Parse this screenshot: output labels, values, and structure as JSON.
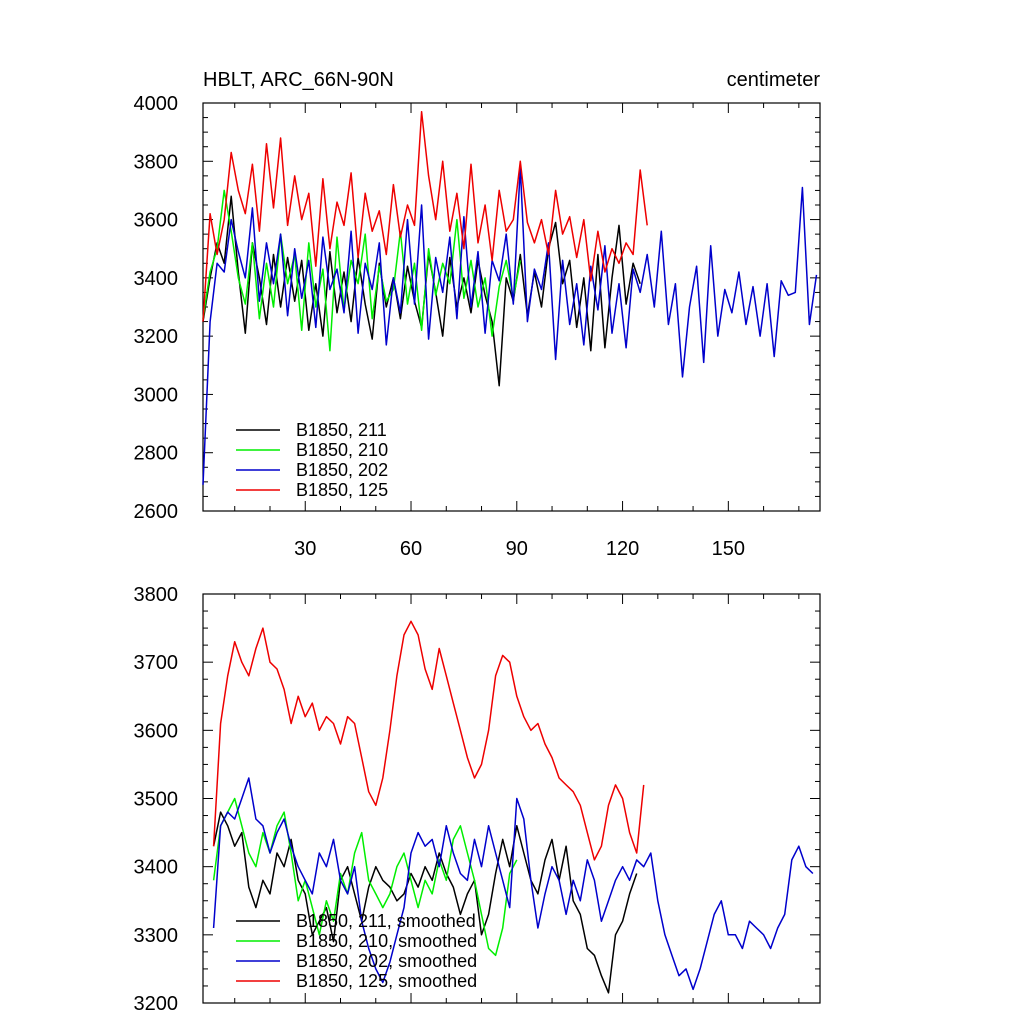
{
  "chart_data": [
    {
      "type": "line",
      "title": "HBLT, ARC_66N-90N",
      "units": "centimeter",
      "xlabel": "",
      "ylabel": "",
      "xlim": [
        1,
        176
      ],
      "ylim": [
        2600,
        4000
      ],
      "xticks": [
        30,
        60,
        90,
        120,
        150
      ],
      "yticks": [
        2600,
        2800,
        3000,
        3200,
        3400,
        3600,
        3800,
        4000
      ],
      "grid": false,
      "legend_position": "bottom-left",
      "series": [
        {
          "name": "B1850, 211",
          "color": "#000000",
          "x": [
            1,
            3,
            5,
            7,
            9,
            11,
            13,
            15,
            17,
            19,
            21,
            23,
            25,
            27,
            29,
            31,
            33,
            35,
            37,
            39,
            41,
            43,
            45,
            47,
            49,
            51,
            53,
            55,
            57,
            59,
            61,
            63,
            65,
            67,
            69,
            71,
            73,
            75,
            77,
            79,
            81,
            83,
            85,
            87,
            89,
            91,
            93,
            95,
            97,
            99,
            101,
            103,
            105,
            107,
            109,
            111,
            113,
            115,
            117,
            119,
            121,
            123,
            125
          ],
          "y": [
            3250,
            3400,
            3520,
            3450,
            3680,
            3420,
            3210,
            3520,
            3400,
            3240,
            3480,
            3300,
            3470,
            3320,
            3460,
            3220,
            3380,
            3200,
            3490,
            3280,
            3420,
            3250,
            3470,
            3310,
            3190,
            3450,
            3300,
            3400,
            3260,
            3440,
            3320,
            3230,
            3480,
            3350,
            3200,
            3470,
            3300,
            3400,
            3280,
            3460,
            3340,
            3250,
            3030,
            3400,
            3320,
            3480,
            3270,
            3420,
            3300,
            3500,
            3590,
            3380,
            3460,
            3230,
            3400,
            3150,
            3480,
            3160,
            3400,
            3580,
            3310,
            3450,
            3380
          ]
        },
        {
          "name": "B1850, 210",
          "color": "#00ee00",
          "x": [
            1,
            3,
            5,
            7,
            9,
            11,
            13,
            15,
            17,
            19,
            21,
            23,
            25,
            27,
            29,
            31,
            33,
            35,
            37,
            39,
            41,
            43,
            45,
            47,
            49,
            51,
            53,
            55,
            57,
            59,
            61,
            63,
            65,
            67,
            69,
            71,
            73,
            75,
            77,
            79,
            81,
            83,
            85,
            87,
            89,
            91
          ],
          "y": [
            3260,
            3420,
            3500,
            3700,
            3560,
            3400,
            3310,
            3520,
            3260,
            3450,
            3300,
            3550,
            3380,
            3480,
            3220,
            3520,
            3300,
            3430,
            3150,
            3540,
            3290,
            3460,
            3380,
            3550,
            3260,
            3440,
            3320,
            3360,
            3560,
            3310,
            3450,
            3220,
            3500,
            3340,
            3450,
            3380,
            3600,
            3330,
            3460,
            3300,
            3400,
            3200,
            3370,
            3460,
            3330,
            3460
          ]
        },
        {
          "name": "B1850, 202",
          "color": "#0000cc",
          "x": [
            1,
            3,
            5,
            7,
            9,
            11,
            13,
            15,
            17,
            19,
            21,
            23,
            25,
            27,
            29,
            31,
            33,
            35,
            37,
            39,
            41,
            43,
            45,
            47,
            49,
            51,
            53,
            55,
            57,
            59,
            61,
            63,
            65,
            67,
            69,
            71,
            73,
            75,
            77,
            79,
            81,
            83,
            85,
            87,
            89,
            91,
            93,
            95,
            97,
            99,
            101,
            103,
            105,
            107,
            109,
            111,
            113,
            115,
            117,
            119,
            121,
            123,
            125,
            127,
            129,
            131,
            133,
            135,
            137,
            139,
            141,
            143,
            145,
            147,
            149,
            151,
            153,
            155,
            157,
            159,
            161,
            163,
            165,
            167,
            169,
            171,
            173,
            175
          ],
          "y": [
            2690,
            3250,
            3450,
            3420,
            3600,
            3490,
            3400,
            3640,
            3320,
            3520,
            3380,
            3550,
            3270,
            3500,
            3330,
            3460,
            3230,
            3540,
            3360,
            3430,
            3280,
            3560,
            3210,
            3450,
            3360,
            3520,
            3170,
            3400,
            3280,
            3600,
            3310,
            3650,
            3190,
            3470,
            3350,
            3540,
            3260,
            3610,
            3300,
            3490,
            3210,
            3460,
            3390,
            3550,
            3310,
            3780,
            3250,
            3430,
            3360,
            3520,
            3120,
            3460,
            3240,
            3380,
            3170,
            3440,
            3290,
            3510,
            3210,
            3380,
            3160,
            3430,
            3350,
            3480,
            3300,
            3560,
            3240,
            3380,
            3060,
            3300,
            3440,
            3110,
            3510,
            3200,
            3360,
            3280,
            3420,
            3240,
            3370,
            3200,
            3380,
            3130,
            3390,
            3340,
            3350,
            3710,
            3240,
            3410
          ]
        },
        {
          "name": "B1850, 125",
          "color": "#ee0000",
          "x": [
            1,
            3,
            5,
            7,
            9,
            11,
            13,
            15,
            17,
            19,
            21,
            23,
            25,
            27,
            29,
            31,
            33,
            35,
            37,
            39,
            41,
            43,
            45,
            47,
            49,
            51,
            53,
            55,
            57,
            59,
            61,
            63,
            65,
            67,
            69,
            71,
            73,
            75,
            77,
            79,
            81,
            83,
            85,
            87,
            89,
            91,
            93,
            95,
            97,
            99,
            101,
            103,
            105,
            107,
            109,
            111,
            113,
            115,
            117,
            119,
            121,
            123,
            125,
            127
          ],
          "y": [
            3250,
            3620,
            3480,
            3600,
            3830,
            3700,
            3620,
            3790,
            3560,
            3860,
            3640,
            3880,
            3580,
            3750,
            3600,
            3690,
            3440,
            3740,
            3500,
            3660,
            3580,
            3760,
            3470,
            3690,
            3560,
            3630,
            3480,
            3720,
            3540,
            3650,
            3580,
            3970,
            3750,
            3600,
            3800,
            3560,
            3690,
            3500,
            3790,
            3520,
            3650,
            3460,
            3700,
            3560,
            3600,
            3800,
            3590,
            3520,
            3600,
            3480,
            3700,
            3550,
            3610,
            3470,
            3600,
            3390,
            3560,
            3420,
            3500,
            3450,
            3520,
            3480,
            3770,
            3580
          ]
        }
      ]
    },
    {
      "type": "line",
      "title": "",
      "xlabel": "",
      "ylabel": "",
      "xlim": [
        1,
        176
      ],
      "ylim": [
        3200,
        3800
      ],
      "xticks": [
        30,
        60,
        90,
        120,
        150
      ],
      "yticks": [
        3200,
        3300,
        3400,
        3500,
        3600,
        3700,
        3800
      ],
      "grid": false,
      "legend_position": "bottom-left",
      "series": [
        {
          "name": "B1850, 211, smoothed",
          "color": "#000000",
          "x": [
            4,
            6,
            8,
            10,
            12,
            14,
            16,
            18,
            20,
            22,
            24,
            26,
            28,
            30,
            32,
            34,
            36,
            38,
            40,
            42,
            44,
            46,
            48,
            50,
            52,
            54,
            56,
            58,
            60,
            62,
            64,
            66,
            68,
            70,
            72,
            74,
            76,
            78,
            80,
            82,
            84,
            86,
            88,
            90,
            92,
            94,
            96,
            98,
            100,
            102,
            104,
            106,
            108,
            110,
            112,
            114,
            116,
            118,
            120,
            122,
            124
          ],
          "y": [
            3430,
            3480,
            3460,
            3430,
            3450,
            3370,
            3340,
            3380,
            3360,
            3420,
            3400,
            3440,
            3380,
            3360,
            3300,
            3320,
            3340,
            3290,
            3380,
            3400,
            3360,
            3320,
            3370,
            3400,
            3380,
            3370,
            3350,
            3360,
            3390,
            3370,
            3400,
            3380,
            3420,
            3390,
            3370,
            3330,
            3360,
            3380,
            3300,
            3330,
            3390,
            3440,
            3400,
            3460,
            3420,
            3380,
            3360,
            3410,
            3440,
            3380,
            3430,
            3350,
            3330,
            3280,
            3270,
            3240,
            3215,
            3300,
            3320,
            3360,
            3390
          ]
        },
        {
          "name": "B1850, 210, smoothed",
          "color": "#00ee00",
          "x": [
            4,
            6,
            8,
            10,
            12,
            14,
            16,
            18,
            20,
            22,
            24,
            26,
            28,
            30,
            32,
            34,
            36,
            38,
            40,
            42,
            44,
            46,
            48,
            50,
            52,
            54,
            56,
            58,
            60,
            62,
            64,
            66,
            68,
            70,
            72,
            74,
            76,
            78,
            80,
            82,
            84,
            86,
            88,
            90
          ],
          "y": [
            3380,
            3460,
            3480,
            3500,
            3460,
            3420,
            3400,
            3450,
            3420,
            3460,
            3480,
            3420,
            3350,
            3380,
            3340,
            3300,
            3350,
            3320,
            3390,
            3360,
            3420,
            3450,
            3380,
            3360,
            3340,
            3360,
            3400,
            3420,
            3380,
            3340,
            3380,
            3360,
            3410,
            3380,
            3440,
            3460,
            3420,
            3380,
            3330,
            3280,
            3270,
            3310,
            3390,
            3410
          ]
        },
        {
          "name": "B1850, 202, smoothed",
          "color": "#0000cc",
          "x": [
            4,
            6,
            8,
            10,
            12,
            14,
            16,
            18,
            20,
            22,
            24,
            26,
            28,
            30,
            32,
            34,
            36,
            38,
            40,
            42,
            44,
            46,
            48,
            50,
            52,
            54,
            56,
            58,
            60,
            62,
            64,
            66,
            68,
            70,
            72,
            74,
            76,
            78,
            80,
            82,
            84,
            86,
            88,
            90,
            92,
            94,
            96,
            98,
            100,
            102,
            104,
            106,
            108,
            110,
            112,
            114,
            116,
            118,
            120,
            122,
            124,
            126,
            128,
            130,
            132,
            134,
            136,
            138,
            140,
            142,
            144,
            146,
            148,
            150,
            152,
            154,
            156,
            158,
            160,
            162,
            164,
            166,
            168,
            170,
            172,
            174
          ],
          "y": [
            3310,
            3460,
            3480,
            3470,
            3500,
            3530,
            3470,
            3460,
            3420,
            3450,
            3470,
            3430,
            3400,
            3380,
            3360,
            3420,
            3400,
            3440,
            3380,
            3360,
            3400,
            3320,
            3280,
            3250,
            3230,
            3260,
            3300,
            3340,
            3420,
            3450,
            3430,
            3440,
            3400,
            3460,
            3420,
            3390,
            3380,
            3440,
            3400,
            3460,
            3420,
            3380,
            3340,
            3500,
            3470,
            3380,
            3310,
            3360,
            3400,
            3380,
            3330,
            3380,
            3350,
            3410,
            3380,
            3320,
            3350,
            3380,
            3400,
            3380,
            3410,
            3400,
            3420,
            3350,
            3300,
            3270,
            3240,
            3250,
            3220,
            3250,
            3290,
            3330,
            3350,
            3300,
            3300,
            3280,
            3320,
            3310,
            3300,
            3280,
            3310,
            3330,
            3410,
            3430,
            3400,
            3390
          ]
        },
        {
          "name": "B1850, 125, smoothed",
          "color": "#ee0000",
          "x": [
            4,
            6,
            8,
            10,
            12,
            14,
            16,
            18,
            20,
            22,
            24,
            26,
            28,
            30,
            32,
            34,
            36,
            38,
            40,
            42,
            44,
            46,
            48,
            50,
            52,
            54,
            56,
            58,
            60,
            62,
            64,
            66,
            68,
            70,
            72,
            74,
            76,
            78,
            80,
            82,
            84,
            86,
            88,
            90,
            92,
            94,
            96,
            98,
            100,
            102,
            104,
            106,
            108,
            110,
            112,
            114,
            116,
            118,
            120,
            122,
            124,
            126
          ],
          "y": [
            3430,
            3610,
            3680,
            3730,
            3700,
            3680,
            3720,
            3750,
            3700,
            3690,
            3660,
            3610,
            3650,
            3620,
            3640,
            3600,
            3620,
            3610,
            3580,
            3620,
            3610,
            3560,
            3510,
            3490,
            3530,
            3600,
            3680,
            3740,
            3760,
            3740,
            3690,
            3660,
            3720,
            3680,
            3640,
            3600,
            3560,
            3530,
            3550,
            3600,
            3680,
            3710,
            3700,
            3650,
            3620,
            3600,
            3610,
            3580,
            3560,
            3530,
            3520,
            3510,
            3490,
            3450,
            3410,
            3430,
            3490,
            3520,
            3500,
            3450,
            3420,
            3520
          ]
        }
      ]
    }
  ]
}
